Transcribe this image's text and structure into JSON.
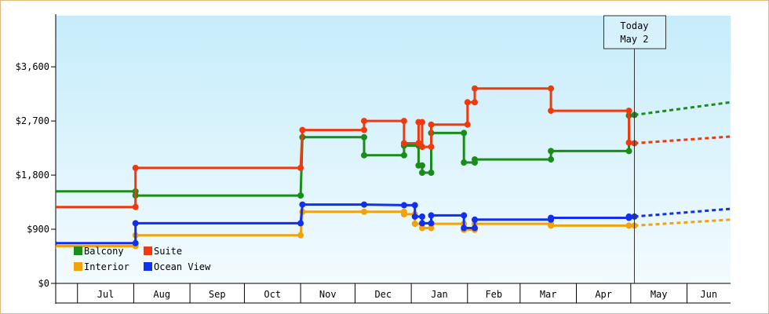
{
  "chart_data": {
    "type": "line",
    "title": "",
    "xlabel": "",
    "ylabel": "",
    "ylim": [
      0,
      4450
    ],
    "xlim": [
      "2015-06-18",
      "2016-06-24"
    ],
    "y_ticks": [
      0,
      900,
      1800,
      2700,
      3600
    ],
    "y_tick_labels": [
      "$0",
      "$900",
      "$1,800",
      "$2,700",
      "$3,600"
    ],
    "month_bands": [
      {
        "label": "",
        "start": "2015-06-18",
        "end": "2015-06-30"
      },
      {
        "label": "Jul",
        "start": "2015-06-30",
        "end": "2015-07-31"
      },
      {
        "label": "Aug",
        "start": "2015-07-31",
        "end": "2015-08-31"
      },
      {
        "label": "Sep",
        "start": "2015-08-31",
        "end": "2015-09-30"
      },
      {
        "label": "Oct",
        "start": "2015-09-30",
        "end": "2015-10-31"
      },
      {
        "label": "Nov",
        "start": "2015-10-31",
        "end": "2015-11-30"
      },
      {
        "label": "Dec",
        "start": "2015-11-30",
        "end": "2015-12-31"
      },
      {
        "label": "Jan",
        "start": "2015-12-31",
        "end": "2016-01-31"
      },
      {
        "label": "Feb",
        "start": "2016-01-31",
        "end": "2016-02-29"
      },
      {
        "label": "Mar",
        "start": "2016-02-29",
        "end": "2016-03-31"
      },
      {
        "label": "Apr",
        "start": "2016-03-31",
        "end": "2016-04-30"
      },
      {
        "label": "May",
        "start": "2016-04-30",
        "end": "2016-05-31"
      },
      {
        "label": "Jun",
        "start": "2016-05-31",
        "end": "2016-06-24"
      }
    ],
    "today": {
      "line1": "Today",
      "line2": "May 2",
      "date": "2016-05-02"
    },
    "legend": {
      "placement": "bottom-left",
      "columns": 2
    },
    "grid": false,
    "background_gradient": [
      "#c6ecfb",
      "#f3fbfe"
    ],
    "series": [
      {
        "name": "Balcony",
        "color": "#1a8c1a",
        "points": [
          [
            "2015-06-17",
            1530
          ],
          [
            "2015-08-01",
            1530
          ],
          [
            "2015-08-01",
            1460
          ],
          [
            "2015-10-31",
            1460
          ],
          [
            "2015-11-01",
            2430
          ],
          [
            "2015-12-05",
            2430
          ],
          [
            "2015-12-05",
            2130
          ],
          [
            "2015-12-27",
            2130
          ],
          [
            "2015-12-27",
            2290
          ],
          [
            "2016-01-04",
            2290
          ],
          [
            "2016-01-04",
            1960
          ],
          [
            "2016-01-06",
            1960
          ],
          [
            "2016-01-06",
            1840
          ],
          [
            "2016-01-11",
            1840
          ],
          [
            "2016-01-11",
            2500
          ],
          [
            "2016-01-29",
            2500
          ],
          [
            "2016-01-29",
            2010
          ],
          [
            "2016-02-04",
            2010
          ],
          [
            "2016-02-04",
            2060
          ],
          [
            "2016-03-17",
            2060
          ],
          [
            "2016-03-17",
            2200
          ],
          [
            "2016-04-29",
            2200
          ],
          [
            "2016-04-29",
            2790
          ],
          [
            "2016-05-02",
            2800
          ]
        ],
        "forecast": [
          [
            "2016-05-02",
            2800
          ],
          [
            "2016-06-24",
            3010
          ]
        ]
      },
      {
        "name": "Suite",
        "color": "#ee3a0e",
        "points": [
          [
            "2015-06-17",
            1270
          ],
          [
            "2015-08-01",
            1270
          ],
          [
            "2015-08-01",
            1920
          ],
          [
            "2015-10-31",
            1920
          ],
          [
            "2015-11-01",
            2550
          ],
          [
            "2015-12-05",
            2550
          ],
          [
            "2015-12-05",
            2700
          ],
          [
            "2015-12-27",
            2700
          ],
          [
            "2015-12-27",
            2330
          ],
          [
            "2016-01-04",
            2330
          ],
          [
            "2016-01-04",
            2680
          ],
          [
            "2016-01-06",
            2680
          ],
          [
            "2016-01-06",
            2270
          ],
          [
            "2016-01-11",
            2270
          ],
          [
            "2016-01-11",
            2640
          ],
          [
            "2016-01-31",
            2640
          ],
          [
            "2016-01-31",
            3010
          ],
          [
            "2016-02-04",
            3010
          ],
          [
            "2016-02-04",
            3240
          ],
          [
            "2016-03-17",
            3240
          ],
          [
            "2016-03-17",
            2870
          ],
          [
            "2016-04-29",
            2870
          ],
          [
            "2016-04-29",
            2340
          ],
          [
            "2016-05-02",
            2330
          ]
        ],
        "forecast": [
          [
            "2016-05-02",
            2330
          ],
          [
            "2016-06-24",
            2440
          ]
        ]
      },
      {
        "name": "Interior",
        "color": "#f0a30a",
        "points": [
          [
            "2015-06-17",
            620
          ],
          [
            "2015-08-01",
            620
          ],
          [
            "2015-08-01",
            800
          ],
          [
            "2015-10-31",
            800
          ],
          [
            "2015-11-01",
            1190
          ],
          [
            "2015-12-05",
            1190
          ],
          [
            "2015-12-27",
            1190
          ],
          [
            "2015-12-27",
            1150
          ],
          [
            "2016-01-02",
            1150
          ],
          [
            "2016-01-02",
            990
          ],
          [
            "2016-01-06",
            990
          ],
          [
            "2016-01-06",
            920
          ],
          [
            "2016-01-11",
            920
          ],
          [
            "2016-01-11",
            990
          ],
          [
            "2016-01-29",
            990
          ],
          [
            "2016-01-29",
            890
          ],
          [
            "2016-02-04",
            890
          ],
          [
            "2016-02-04",
            990
          ],
          [
            "2016-03-17",
            990
          ],
          [
            "2016-03-17",
            960
          ],
          [
            "2016-04-29",
            960
          ],
          [
            "2016-05-02",
            960
          ]
        ],
        "forecast": [
          [
            "2016-05-02",
            960
          ],
          [
            "2016-06-24",
            1060
          ]
        ]
      },
      {
        "name": "Ocean View",
        "color": "#1130ee",
        "points": [
          [
            "2015-06-17",
            670
          ],
          [
            "2015-08-01",
            670
          ],
          [
            "2015-08-01",
            1000
          ],
          [
            "2015-10-31",
            1000
          ],
          [
            "2015-11-01",
            1310
          ],
          [
            "2015-12-05",
            1310
          ],
          [
            "2015-12-27",
            1300
          ],
          [
            "2016-01-02",
            1300
          ],
          [
            "2016-01-02",
            1110
          ],
          [
            "2016-01-06",
            1110
          ],
          [
            "2016-01-06",
            1000
          ],
          [
            "2016-01-11",
            1000
          ],
          [
            "2016-01-11",
            1130
          ],
          [
            "2016-01-29",
            1130
          ],
          [
            "2016-01-29",
            920
          ],
          [
            "2016-02-04",
            920
          ],
          [
            "2016-02-04",
            1060
          ],
          [
            "2016-03-17",
            1060
          ],
          [
            "2016-03-17",
            1090
          ],
          [
            "2016-04-29",
            1090
          ],
          [
            "2016-04-29",
            1110
          ],
          [
            "2016-05-02",
            1110
          ]
        ],
        "forecast": [
          [
            "2016-05-02",
            1110
          ],
          [
            "2016-06-24",
            1240
          ]
        ]
      }
    ]
  }
}
